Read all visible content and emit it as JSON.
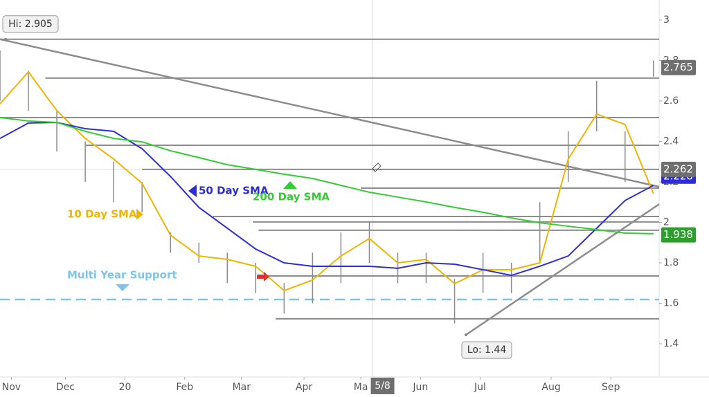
{
  "chart_data": {
    "type": "line",
    "xlim": [
      0,
      232
    ],
    "ylim": [
      1.236,
      3.099
    ],
    "xticks": [
      {
        "value": 4,
        "label": "Nov"
      },
      {
        "value": 23,
        "label": "Dec"
      },
      {
        "value": 44,
        "label": "20"
      },
      {
        "value": 65,
        "label": "Feb"
      },
      {
        "value": 85,
        "label": "Mar"
      },
      {
        "value": 107,
        "label": "Apr"
      },
      {
        "value": 127,
        "label": "Ma"
      },
      {
        "value": 148,
        "label": "Jun"
      },
      {
        "value": 169,
        "label": "Jul"
      },
      {
        "value": 194,
        "label": "Aug"
      },
      {
        "value": 215,
        "label": "Sep"
      }
    ],
    "yticks": [
      1.4,
      1.6,
      1.8,
      2,
      2.2,
      2.4,
      2.6,
      2.8,
      3
    ],
    "x": [
      0,
      10,
      20,
      30,
      40,
      50,
      60,
      70,
      80,
      90,
      100,
      110,
      120,
      130,
      140,
      150,
      160,
      170,
      180,
      190,
      200,
      210,
      220,
      230
    ],
    "bars": {
      "color": "#8a8a8a",
      "high": [
        2.85,
        2.75,
        2.55,
        2.4,
        2.3,
        2.2,
        1.95,
        1.9,
        1.85,
        1.8,
        1.7,
        1.85,
        1.95,
        2.0,
        1.85,
        1.85,
        1.72,
        1.85,
        1.8,
        2.1,
        2.45,
        2.7,
        2.45,
        2.8
      ],
      "low": [
        2.6,
        2.55,
        2.35,
        2.2,
        2.1,
        2.05,
        1.85,
        1.8,
        1.7,
        1.65,
        1.55,
        1.6,
        1.7,
        1.8,
        1.7,
        1.7,
        1.5,
        1.65,
        1.65,
        1.8,
        2.2,
        2.45,
        2.2,
        2.72
      ]
    },
    "series": [
      {
        "name": "10 Day SMA",
        "color": "#f0b400",
        "values": [
          2.586,
          2.744,
          2.552,
          2.415,
          2.313,
          2.193,
          1.937,
          1.834,
          1.817,
          1.783,
          1.663,
          1.715,
          1.834,
          1.92,
          1.8,
          1.817,
          1.697,
          1.766,
          1.766,
          1.8,
          2.313,
          2.535,
          2.484,
          2.142
        ]
      },
      {
        "name": "50 Day SMA",
        "color": "#2d2dd6",
        "values": [
          2.415,
          2.491,
          2.494,
          2.463,
          2.45,
          2.364,
          2.227,
          2.074,
          1.971,
          1.868,
          1.8,
          1.783,
          1.783,
          1.783,
          1.773,
          1.8,
          1.793,
          1.766,
          1.738,
          1.783,
          1.834,
          1.971,
          2.108,
          2.183
        ]
      },
      {
        "name": "200 Day SMA",
        "color": "#33cc33",
        "values": [
          2.518,
          2.501,
          2.494,
          2.45,
          2.415,
          2.398,
          2.354,
          2.32,
          2.285,
          2.262,
          2.238,
          2.217,
          2.183,
          2.149,
          2.125,
          2.101,
          2.074,
          2.05,
          2.022,
          1.998,
          1.981,
          1.964,
          1.947,
          1.944
        ]
      }
    ],
    "levels": [
      {
        "value": 2.905,
        "start": 0
      },
      {
        "value": 2.713,
        "start": 16
      },
      {
        "value": 2.518,
        "start": 0
      },
      {
        "value": 2.381,
        "start": 30
      },
      {
        "value": 2.262,
        "start": 50
      },
      {
        "value": 2.169,
        "start": 127
      },
      {
        "value": 2.029,
        "start": 75
      },
      {
        "value": 2.002,
        "start": 89
      },
      {
        "value": 1.961,
        "start": 91
      },
      {
        "value": 1.735,
        "start": 91
      },
      {
        "value": 1.523,
        "start": 97
      }
    ],
    "trendlines": [
      {
        "x": [
          0,
          232
        ],
        "values": [
          2.905,
          2.176
        ]
      },
      {
        "x": [
          164,
          232
        ],
        "values": [
          1.444,
          2.09
        ]
      }
    ],
    "support": {
      "label": "Multi Year Support",
      "value": 1.619,
      "color": "#7cc4ec"
    },
    "hi": {
      "text": "Hi: 2.905",
      "value": 2.905,
      "x": 2
    },
    "lo": {
      "text": "Lo: 1.44",
      "value": 1.444,
      "x": 164
    },
    "crosshair": {
      "x": 131,
      "x_label": "5/8",
      "value": 2.262
    },
    "price_labels": [
      {
        "value": 2.765,
        "color": "#6f6f6f"
      },
      {
        "value": 2.228,
        "color": "#2d2dd6"
      },
      {
        "value": 1.938,
        "color": "#2e9e2e"
      }
    ]
  }
}
